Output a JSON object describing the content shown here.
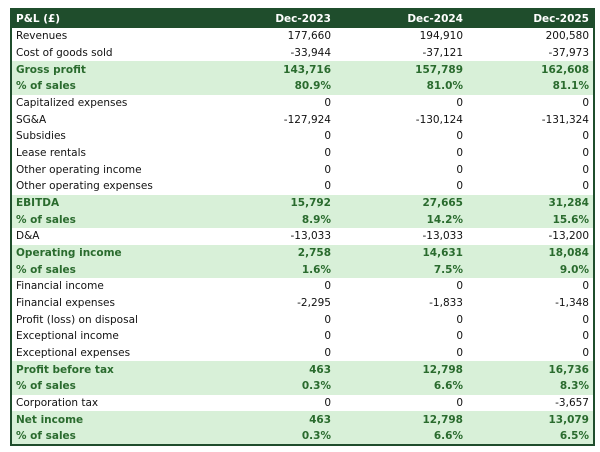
{
  "table": {
    "header": [
      "P&L (£)",
      "Dec-2023",
      "Dec-2024",
      "Dec-2025"
    ],
    "rows": [
      [
        "Revenues",
        "177,660",
        "194,910",
        "200,580"
      ],
      [
        "Cost of goods sold",
        "-33,944",
        "-37,121",
        "-37,973"
      ],
      [
        "Gross profit",
        "143,716",
        "157,789",
        "162,608"
      ],
      [
        "% of sales",
        "80.9%",
        "81.0%",
        "81.1%"
      ],
      [
        "Capitalized expenses",
        "0",
        "0",
        "0"
      ],
      [
        "SG&A",
        "-127,924",
        "-130,124",
        "-131,324"
      ],
      [
        "Subsidies",
        "0",
        "0",
        "0"
      ],
      [
        "Lease rentals",
        "0",
        "0",
        "0"
      ],
      [
        "Other operating income",
        "0",
        "0",
        "0"
      ],
      [
        "Other operating expenses",
        "0",
        "0",
        "0"
      ],
      [
        "EBITDA",
        "15,792",
        "27,665",
        "31,284"
      ],
      [
        "% of sales",
        "8.9%",
        "14.2%",
        "15.6%"
      ],
      [
        "D&A",
        "-13,033",
        "-13,033",
        "-13,200"
      ],
      [
        "Operating income",
        "2,758",
        "14,631",
        "18,084"
      ],
      [
        "% of sales",
        "1.6%",
        "7.5%",
        "9.0%"
      ],
      [
        "Financial income",
        "0",
        "0",
        "0"
      ],
      [
        "Financial expenses",
        "-2,295",
        "-1,833",
        "-1,348"
      ],
      [
        "Profit (loss) on disposal",
        "0",
        "0",
        "0"
      ],
      [
        "Exceptional income",
        "0",
        "0",
        "0"
      ],
      [
        "Exceptional expenses",
        "0",
        "0",
        "0"
      ],
      [
        "Profit before tax",
        "463",
        "12,798",
        "16,736"
      ],
      [
        "% of sales",
        "0.3%",
        "6.6%",
        "8.3%"
      ],
      [
        "Corporation tax",
        "0",
        "0",
        "-3,657"
      ],
      [
        "Net income",
        "463",
        "12,798",
        "13,079"
      ],
      [
        "% of sales",
        "0.3%",
        "6.6%",
        "6.5%"
      ]
    ]
  }
}
